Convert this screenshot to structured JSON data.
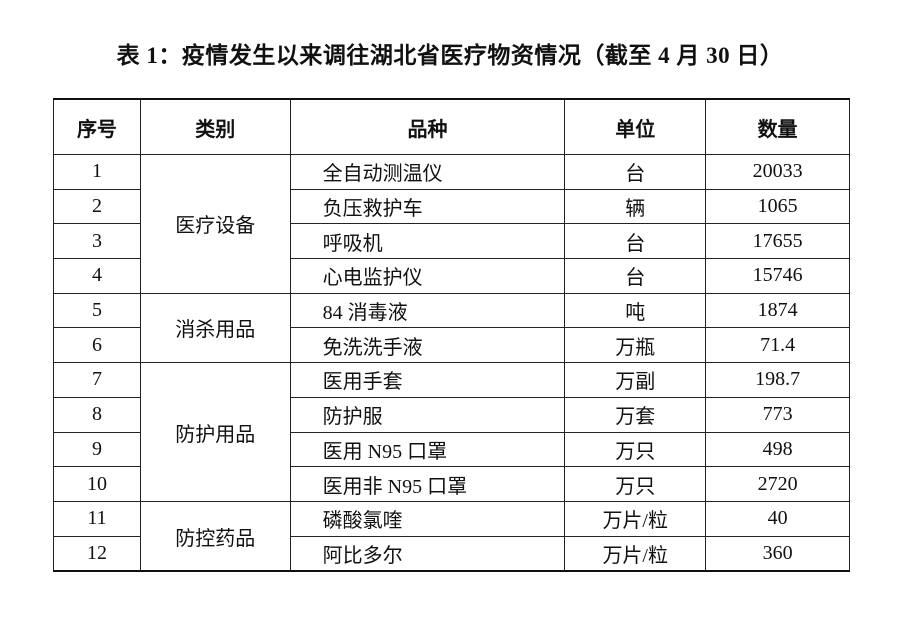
{
  "title": "表 1：疫情发生以来调往湖北省医疗物资情况（截至 4 月 30 日）",
  "headers": [
    "序号",
    "类别",
    "品种",
    "单位",
    "数量"
  ],
  "groups": [
    {
      "category": "医疗设备",
      "rows": [
        {
          "no": "1",
          "item": "全自动测温仪",
          "unit": "台",
          "qty": "20033"
        },
        {
          "no": "2",
          "item": "负压救护车",
          "unit": "辆",
          "qty": "1065"
        },
        {
          "no": "3",
          "item": "呼吸机",
          "unit": "台",
          "qty": "17655"
        },
        {
          "no": "4",
          "item": "心电监护仪",
          "unit": "台",
          "qty": "15746"
        }
      ]
    },
    {
      "category": "消杀用品",
      "rows": [
        {
          "no": "5",
          "item": "84 消毒液",
          "unit": "吨",
          "qty": "1874"
        },
        {
          "no": "6",
          "item": "免洗洗手液",
          "unit": "万瓶",
          "qty": "71.4"
        }
      ]
    },
    {
      "category": "防护用品",
      "rows": [
        {
          "no": "7",
          "item": "医用手套",
          "unit": "万副",
          "qty": "198.7"
        },
        {
          "no": "8",
          "item": "防护服",
          "unit": "万套",
          "qty": "773"
        },
        {
          "no": "9",
          "item": "医用 N95 口罩",
          "unit": "万只",
          "qty": "498"
        },
        {
          "no": "10",
          "item": "医用非 N95 口罩",
          "unit": "万只",
          "qty": "2720"
        }
      ]
    },
    {
      "category": "防控药品",
      "rows": [
        {
          "no": "11",
          "item": "磷酸氯喹",
          "unit": "万片/粒",
          "qty": "40"
        },
        {
          "no": "12",
          "item": "阿比多尔",
          "unit": "万片/粒",
          "qty": "360"
        }
      ]
    }
  ]
}
